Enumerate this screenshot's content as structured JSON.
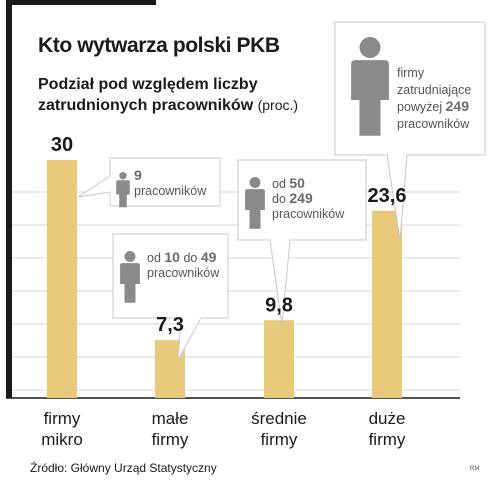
{
  "title": "Kto wytwarza polski PKB",
  "subtitle_line1": "Podział pod względem liczby",
  "subtitle_line2": "zatrudnionych pracowników",
  "unit": "(proc.)",
  "source": "Źródło: Główny Urząd Statystyczny",
  "credit": "RM",
  "colors": {
    "bar": "#e8c97a",
    "icon": "#8a8a8a",
    "text": "#1a1a1a",
    "grid": "#d6d6d6"
  },
  "chart_data": {
    "type": "bar",
    "categories": [
      [
        "firmy",
        "mikro"
      ],
      [
        "małe",
        "firmy"
      ],
      [
        "średnie",
        "firmy"
      ],
      [
        "duże",
        "firmy"
      ]
    ],
    "values": [
      30,
      7.3,
      9.8,
      23.6
    ],
    "value_labels": [
      "30",
      "7,3",
      "9,8",
      "23,6"
    ],
    "ylim": [
      0,
      30
    ],
    "grid": true,
    "annotations": [
      {
        "bar": 0,
        "icon": "person-icon",
        "lines": [
          [
            {
              "t": "9",
              "b": true
            }
          ],
          [
            {
              "t": "pracowników",
              "b": false
            }
          ]
        ]
      },
      {
        "bar": 1,
        "icon": "person-icon",
        "lines": [
          [
            {
              "t": "od ",
              "b": false
            },
            {
              "t": "10",
              "b": true
            },
            {
              "t": " do ",
              "b": false
            },
            {
              "t": "49",
              "b": true
            }
          ],
          [
            {
              "t": "pracowników",
              "b": false
            }
          ]
        ]
      },
      {
        "bar": 2,
        "icon": "person-icon",
        "lines": [
          [
            {
              "t": "od ",
              "b": false
            },
            {
              "t": "50",
              "b": true
            }
          ],
          [
            {
              "t": "do ",
              "b": false
            },
            {
              "t": "249",
              "b": true
            }
          ],
          [
            {
              "t": "pracowników",
              "b": false
            }
          ]
        ]
      },
      {
        "bar": 3,
        "icon": "person-icon",
        "lines": [
          [
            {
              "t": "firmy",
              "b": false
            }
          ],
          [
            {
              "t": "zatrudniające",
              "b": false
            }
          ],
          [
            {
              "t": "powyżej ",
              "b": false
            },
            {
              "t": "249",
              "b": true
            }
          ],
          [
            {
              "t": "pracowników",
              "b": false
            }
          ]
        ]
      }
    ]
  }
}
